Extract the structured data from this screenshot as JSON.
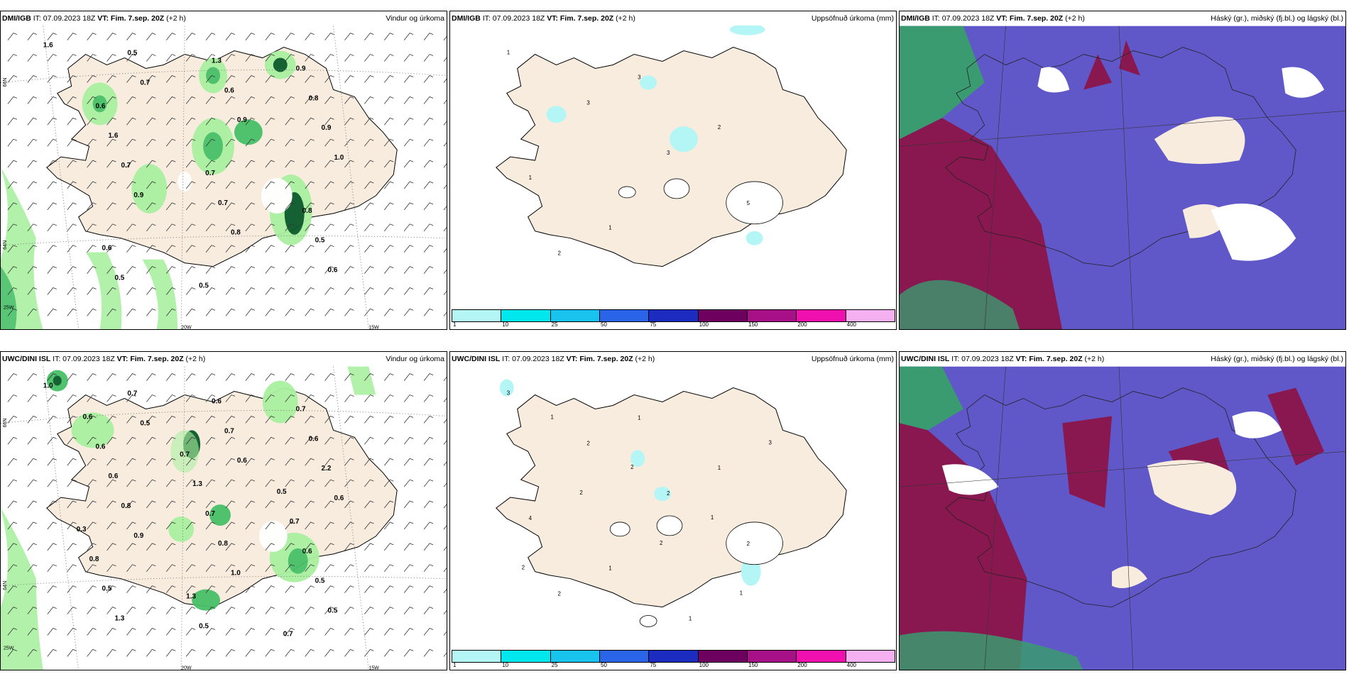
{
  "rows": [
    {
      "model_name": "DMI/IGB",
      "panels": [
        {
          "title": "Vindur og úrkoma",
          "type": "wind"
        },
        {
          "title": "Uppsöfnuð úrkoma (mm)",
          "type": "precip"
        },
        {
          "title": "Háský (gr.), miðský (fj.bl.) og lágský (bl.)",
          "type": "cloud"
        }
      ]
    },
    {
      "model_name": "UWC/DINI ISL",
      "panels": [
        {
          "title": "Vindur og úrkoma",
          "type": "wind"
        },
        {
          "title": "Uppsöfnuð úrkoma (mm)",
          "type": "precip"
        },
        {
          "title": "Háský (gr.), miðský (fj.bl.) og lágský (bl.)",
          "type": "cloud"
        }
      ]
    }
  ],
  "init_time": "IT: 07.09.2023 18Z",
  "valid_label": "VT: Fim. 7.sep. 20Z",
  "lead": "(+2 h)",
  "lat_labels": [
    "66N",
    "64N"
  ],
  "lon_labels": [
    "25W",
    "20W",
    "15W"
  ],
  "precip_scale": {
    "labels": [
      "1",
      "10",
      "25",
      "50",
      "75",
      "100",
      "150",
      "200",
      "400"
    ],
    "colors": [
      "#b4f5f5",
      "#00e8ee",
      "#18c4ee",
      "#2a64e8",
      "#1c2cc0",
      "#6e0060",
      "#a81088",
      "#f010b0",
      "#f4b0f0"
    ]
  },
  "wind_values_top": [
    "1.6",
    "0.7",
    "0.9",
    "1.0",
    "0.9",
    "0.8",
    "0.6",
    "0.5",
    "0.6",
    "0.9",
    "0.7",
    "0.7",
    "0.5",
    "0.5",
    "1.3",
    "0.8",
    "1.6",
    "0.7",
    "0.8",
    "0.6",
    "0.5",
    "0.9",
    "0.6"
  ],
  "wind_values_bottom": [
    "1.0",
    "0.5",
    "0.6",
    "0.6",
    "0.9",
    "1.0",
    "0.5",
    "0.7",
    "0.7",
    "2.2",
    "0.8",
    "0.8",
    "0.5",
    "1.3",
    "0.6",
    "0.6",
    "0.6",
    "0.7",
    "0.6",
    "0.5",
    "0.5",
    "0.7",
    "0.6",
    "1.3",
    "0.7",
    "0.8",
    "1.3",
    "0.7",
    "0.6",
    "0.7",
    "0.5",
    "0.3"
  ],
  "precip_values_top": [
    "1",
    "3",
    "3",
    "5",
    "2",
    "3",
    "2",
    "1",
    "1"
  ],
  "precip_values_bottom": [
    "3",
    "2",
    "2",
    "2",
    "2",
    "1",
    "1",
    "4",
    "1",
    "1",
    "3",
    "2",
    "2",
    "1",
    "1",
    "2",
    "1",
    "2"
  ],
  "colors": {
    "land": "#f8ecdf",
    "green_light": "#a9f0a0",
    "green_mid": "#48c068",
    "green_dark": "#0a5a2a",
    "cloud_low": "#6058c8",
    "cloud_mid": "#8a1850",
    "cloud_high": "#3a9a70"
  }
}
